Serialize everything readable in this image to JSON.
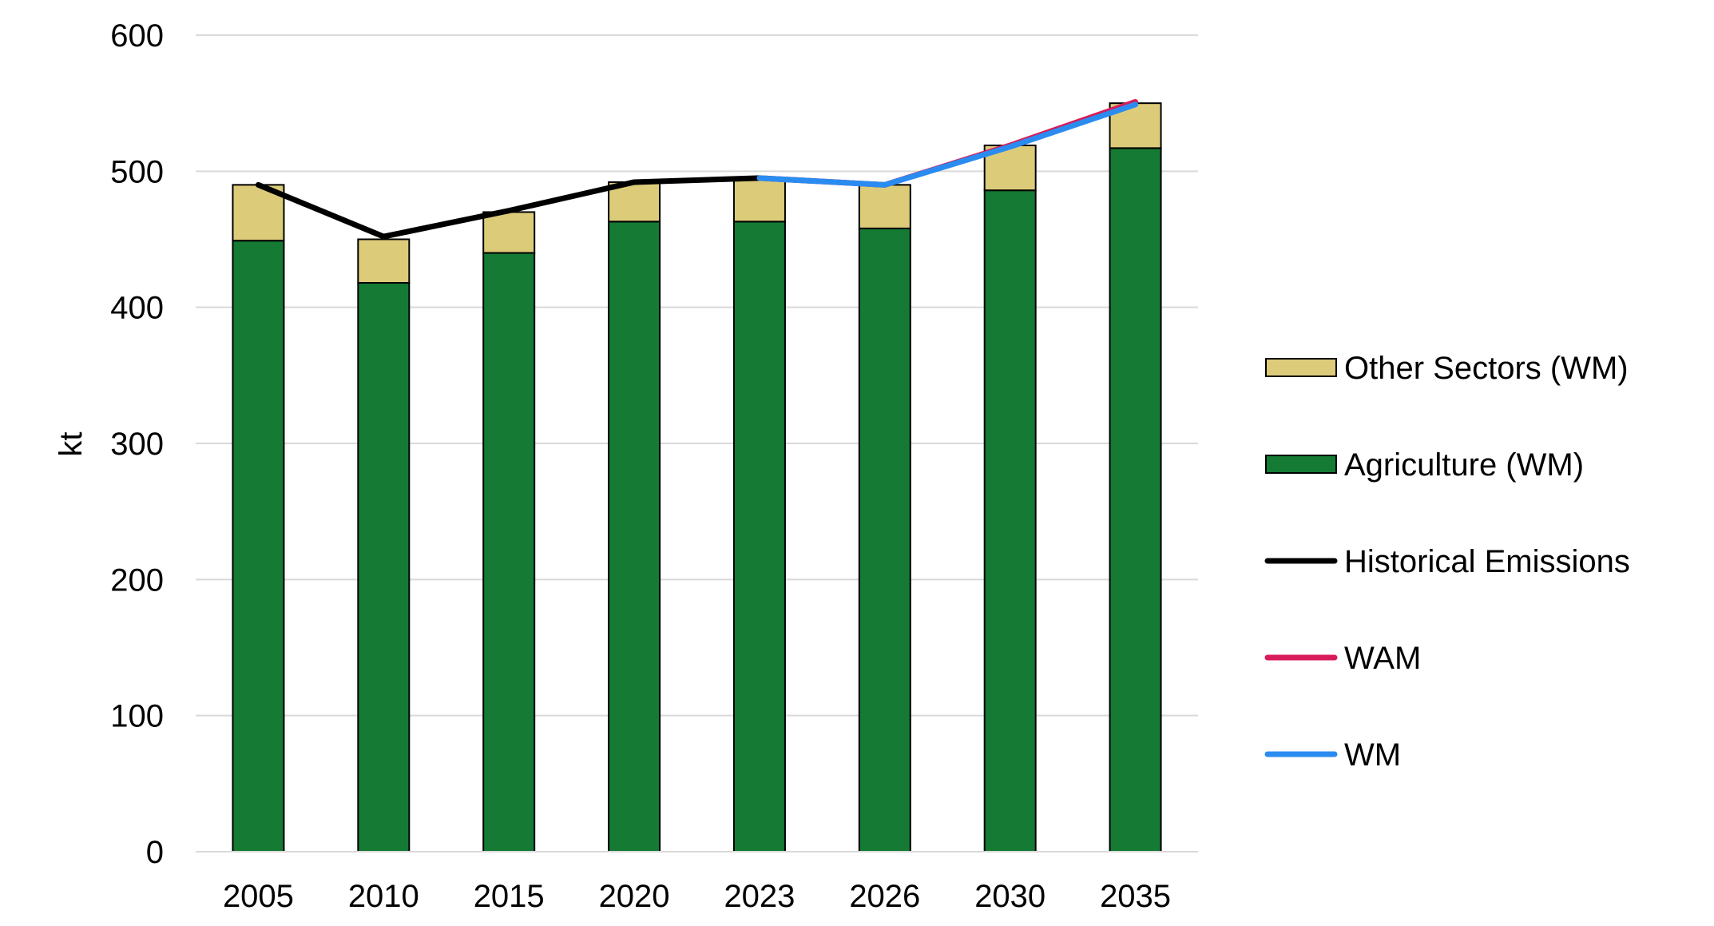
{
  "chart_data": {
    "type": "bar",
    "stacked": true,
    "categories": [
      "2005",
      "2010",
      "2015",
      "2020",
      "2023",
      "2026",
      "2030",
      "2035"
    ],
    "ylabel": "kt",
    "xlabel": "",
    "title": "",
    "ylim": [
      0,
      600
    ],
    "yticks": [
      0,
      100,
      200,
      300,
      400,
      500,
      600
    ],
    "grid": "horizontal",
    "legend_position": "right",
    "bar_series": [
      {
        "name": "Agriculture (WM)",
        "color": "#147a34",
        "values": [
          449,
          418,
          440,
          463,
          463,
          458,
          486,
          517
        ]
      },
      {
        "name": "Other Sectors (WM)",
        "color": "#dccc7a",
        "values": [
          41,
          32,
          30,
          29,
          32,
          32,
          33,
          33
        ]
      }
    ],
    "line_series": [
      {
        "name": "Historical Emissions",
        "color": "#000000",
        "points": [
          {
            "x": "2005",
            "y": 490
          },
          {
            "x": "2010",
            "y": 452
          },
          {
            "x": "2015",
            "y": 471
          },
          {
            "x": "2020",
            "y": 492
          },
          {
            "x": "2023",
            "y": 495
          }
        ]
      },
      {
        "name": "WAM",
        "color": "#d81b5a",
        "points": [
          {
            "x": "2023",
            "y": 495
          },
          {
            "x": "2026",
            "y": 490
          },
          {
            "x": "2030",
            "y": 519
          },
          {
            "x": "2035",
            "y": 551
          }
        ]
      },
      {
        "name": "WM",
        "color": "#2a8cf0",
        "points": [
          {
            "x": "2023",
            "y": 495
          },
          {
            "x": "2026",
            "y": 490
          },
          {
            "x": "2030",
            "y": 518
          },
          {
            "x": "2035",
            "y": 549
          }
        ]
      }
    ],
    "legend": [
      {
        "label": "Other Sectors (WM)",
        "kind": "swatch",
        "color": "#dccc7a"
      },
      {
        "label": "Agriculture (WM)",
        "kind": "swatch",
        "color": "#147a34"
      },
      {
        "label": "Historical Emissions",
        "kind": "line",
        "color": "#000000"
      },
      {
        "label": "WAM",
        "kind": "line",
        "color": "#d81b5a"
      },
      {
        "label": "WM",
        "kind": "line",
        "color": "#2a8cf0"
      }
    ]
  }
}
